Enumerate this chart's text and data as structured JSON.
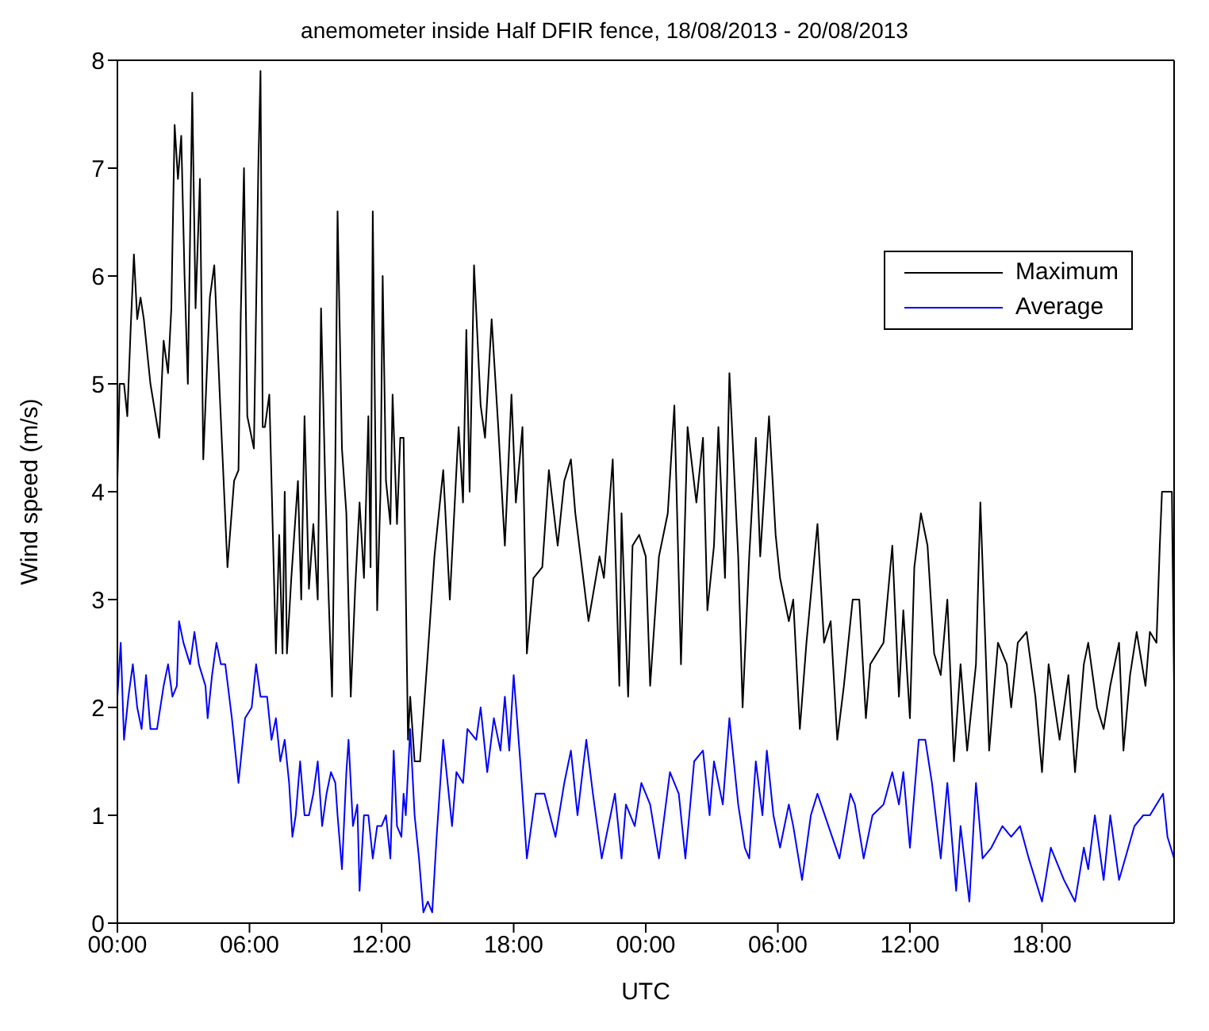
{
  "chart_data": {
    "type": "line",
    "title": "anemometer inside Half DFIR fence, 18/08/2013 - 20/08/2013",
    "xlabel": "UTC",
    "ylabel": "Wind speed (m/s)",
    "xlim": [
      "2013-08-18T00:00",
      "2013-08-20T00:00"
    ],
    "xticks": [
      {
        "value": "2013-08-18T00:00",
        "label": "00:00"
      },
      {
        "value": "2013-08-18T06:00",
        "label": "06:00"
      },
      {
        "value": "2013-08-18T12:00",
        "label": "12:00"
      },
      {
        "value": "2013-08-18T18:00",
        "label": "18:00"
      },
      {
        "value": "2013-08-19T00:00",
        "label": "00:00"
      },
      {
        "value": "2013-08-19T06:00",
        "label": "06:00"
      },
      {
        "value": "2013-08-19T12:00",
        "label": "12:00"
      },
      {
        "value": "2013-08-19T18:00",
        "label": "18:00"
      }
    ],
    "ylim": [
      0,
      8
    ],
    "yticks": [
      0,
      1,
      2,
      3,
      4,
      5,
      6,
      7,
      8
    ],
    "legend": "top right",
    "line_style": "solid",
    "marker": "none",
    "series": [
      {
        "name": "Maximum",
        "color": "#000000",
        "x": [
          "2013-08-18T00:00",
          "2013-08-18T00:06",
          "2013-08-18T00:18",
          "2013-08-18T00:27",
          "2013-08-18T00:36",
          "2013-08-18T00:45",
          "2013-08-18T00:54",
          "2013-08-18T01:03",
          "2013-08-18T01:12",
          "2013-08-18T01:30",
          "2013-08-18T01:54",
          "2013-08-18T02:06",
          "2013-08-18T02:18",
          "2013-08-18T02:27",
          "2013-08-18T02:36",
          "2013-08-18T02:45",
          "2013-08-18T02:54",
          "2013-08-18T03:03",
          "2013-08-18T03:12",
          "2013-08-18T03:24",
          "2013-08-18T03:33",
          "2013-08-18T03:45",
          "2013-08-18T03:54",
          "2013-08-18T04:12",
          "2013-08-18T04:24",
          "2013-08-18T04:39",
          "2013-08-18T05:00",
          "2013-08-18T05:18",
          "2013-08-18T05:30",
          "2013-08-18T05:36",
          "2013-08-18T05:45",
          "2013-08-18T05:54",
          "2013-08-18T06:12",
          "2013-08-18T06:24",
          "2013-08-18T06:30",
          "2013-08-18T06:36",
          "2013-08-18T06:42",
          "2013-08-18T06:54",
          "2013-08-18T07:06",
          "2013-08-18T07:12",
          "2013-08-18T07:21",
          "2013-08-18T07:30",
          "2013-08-18T07:36",
          "2013-08-18T07:42",
          "2013-08-18T07:54",
          "2013-08-18T08:12",
          "2013-08-18T08:21",
          "2013-08-18T08:30",
          "2013-08-18T08:42",
          "2013-08-18T08:54",
          "2013-08-18T09:06",
          "2013-08-18T09:15",
          "2013-08-18T09:27",
          "2013-08-18T09:36",
          "2013-08-18T09:45",
          "2013-08-18T09:54",
          "2013-08-18T10:00",
          "2013-08-18T10:12",
          "2013-08-18T10:24",
          "2013-08-18T10:36",
          "2013-08-18T10:48",
          "2013-08-18T11:00",
          "2013-08-18T11:12",
          "2013-08-18T11:24",
          "2013-08-18T11:30",
          "2013-08-18T11:36",
          "2013-08-18T11:48",
          "2013-08-18T11:57",
          "2013-08-18T12:03",
          "2013-08-18T12:12",
          "2013-08-18T12:24",
          "2013-08-18T12:30",
          "2013-08-18T12:42",
          "2013-08-18T12:51",
          "2013-08-18T13:00",
          "2013-08-18T13:12",
          "2013-08-18T13:18",
          "2013-08-18T13:30",
          "2013-08-18T13:45",
          "2013-08-18T14:06",
          "2013-08-18T14:24",
          "2013-08-18T14:48",
          "2013-08-18T15:06",
          "2013-08-18T15:30",
          "2013-08-18T15:42",
          "2013-08-18T15:51",
          "2013-08-18T16:00",
          "2013-08-18T16:12",
          "2013-08-18T16:30",
          "2013-08-18T16:42",
          "2013-08-18T17:00",
          "2013-08-18T17:18",
          "2013-08-18T17:36",
          "2013-08-18T17:54",
          "2013-08-18T18:06",
          "2013-08-18T18:24",
          "2013-08-18T18:36",
          "2013-08-18T18:54",
          "2013-08-18T19:18",
          "2013-08-18T19:36",
          "2013-08-18T20:00",
          "2013-08-18T20:18",
          "2013-08-18T20:36",
          "2013-08-18T20:48",
          "2013-08-18T21:24",
          "2013-08-18T21:54",
          "2013-08-18T22:06",
          "2013-08-18T22:30",
          "2013-08-18T22:48",
          "2013-08-18T22:54",
          "2013-08-18T23:12",
          "2013-08-18T23:24",
          "2013-08-18T23:42",
          "2013-08-19T00:00",
          "2013-08-19T00:12",
          "2013-08-19T00:36",
          "2013-08-19T01:00",
          "2013-08-19T01:18",
          "2013-08-19T01:36",
          "2013-08-19T01:54",
          "2013-08-19T02:18",
          "2013-08-19T02:36",
          "2013-08-19T02:48",
          "2013-08-19T03:06",
          "2013-08-19T03:18",
          "2013-08-19T03:36",
          "2013-08-19T03:48",
          "2013-08-19T04:12",
          "2013-08-19T04:24",
          "2013-08-19T04:42",
          "2013-08-19T05:00",
          "2013-08-19T05:12",
          "2013-08-19T05:36",
          "2013-08-19T05:54",
          "2013-08-19T06:06",
          "2013-08-19T06:30",
          "2013-08-19T06:42",
          "2013-08-19T07:00",
          "2013-08-19T07:18",
          "2013-08-19T07:48",
          "2013-08-19T08:06",
          "2013-08-19T08:24",
          "2013-08-19T08:42",
          "2013-08-19T09:00",
          "2013-08-19T09:24",
          "2013-08-19T09:42",
          "2013-08-19T10:00",
          "2013-08-19T10:12",
          "2013-08-19T10:48",
          "2013-08-19T11:12",
          "2013-08-19T11:30",
          "2013-08-19T11:42",
          "2013-08-19T12:00",
          "2013-08-19T12:12",
          "2013-08-19T12:30",
          "2013-08-19T12:48",
          "2013-08-19T13:06",
          "2013-08-19T13:24",
          "2013-08-19T13:42",
          "2013-08-19T14:00",
          "2013-08-19T14:18",
          "2013-08-19T14:36",
          "2013-08-19T15:00",
          "2013-08-19T15:12",
          "2013-08-19T15:36",
          "2013-08-19T16:00",
          "2013-08-19T16:24",
          "2013-08-19T16:36",
          "2013-08-19T16:54",
          "2013-08-19T17:18",
          "2013-08-19T17:42",
          "2013-08-19T18:00",
          "2013-08-19T18:18",
          "2013-08-19T18:48",
          "2013-08-19T19:12",
          "2013-08-19T19:30",
          "2013-08-19T19:54",
          "2013-08-19T20:06",
          "2013-08-19T20:30",
          "2013-08-19T20:48",
          "2013-08-19T21:06",
          "2013-08-19T21:30",
          "2013-08-19T21:42",
          "2013-08-19T22:00",
          "2013-08-19T22:18",
          "2013-08-19T22:42",
          "2013-08-19T22:54",
          "2013-08-19T23:12",
          "2013-08-19T23:21",
          "2013-08-19T23:27",
          "2013-08-19T23:54",
          "2013-08-20T00:00"
        ],
        "values": [
          4.1,
          5,
          5,
          4.7,
          5.5,
          6.2,
          5.6,
          5.8,
          5.6,
          5,
          4.5,
          5.4,
          5.1,
          5.7,
          7.4,
          6.9,
          7.3,
          6,
          5,
          7.7,
          5.7,
          6.9,
          4.3,
          5.8,
          6.1,
          4.9,
          3.3,
          4.1,
          4.2,
          5.6,
          7,
          4.7,
          4.4,
          7,
          7.9,
          4.6,
          4.6,
          4.9,
          3.3,
          2.5,
          3.6,
          2.5,
          4,
          2.5,
          3.2,
          4.1,
          3,
          4.7,
          3.1,
          3.7,
          3,
          5.7,
          4,
          3,
          2.1,
          4.3,
          6.6,
          4.4,
          3.8,
          2.1,
          3.1,
          3.9,
          3.2,
          4.7,
          3.3,
          6.6,
          2.9,
          4,
          6,
          4.1,
          3.7,
          4.9,
          3.7,
          4.5,
          4.5,
          1.7,
          2.1,
          1.5,
          1.5,
          2.5,
          3.4,
          4.2,
          3,
          4.6,
          3.9,
          5.5,
          4,
          6.1,
          4.8,
          4.5,
          5.6,
          4.6,
          3.5,
          4.9,
          3.9,
          4.6,
          2.5,
          3.2,
          3.3,
          4.2,
          3.5,
          4.1,
          4.3,
          3.8,
          2.8,
          3.4,
          3.2,
          4.3,
          2.2,
          3.8,
          2.1,
          3.5,
          3.6,
          3.4,
          2.2,
          3.4,
          3.8,
          4.8,
          2.4,
          4.6,
          3.9,
          4.5,
          2.9,
          3.5,
          4.6,
          3.2,
          5.1,
          3.4,
          2,
          3.4,
          4.5,
          3.4,
          4.7,
          3.6,
          3.2,
          2.8,
          3,
          1.8,
          2.6,
          3.7,
          2.6,
          2.8,
          1.7,
          2.2,
          3,
          3,
          1.9,
          2.4,
          2.6,
          3.5,
          2.1,
          2.9,
          1.9,
          3.3,
          3.8,
          3.5,
          2.5,
          2.3,
          3,
          1.5,
          2.4,
          1.6,
          2.4,
          3.9,
          1.6,
          2.6,
          2.4,
          2,
          2.6,
          2.7,
          2.1,
          1.4,
          2.4,
          1.7,
          2.3,
          1.4,
          2.4,
          2.6,
          2,
          1.8,
          2.2,
          2.6,
          1.6,
          2.3,
          2.7,
          2.2,
          2.7,
          2.6,
          3.5,
          4,
          4,
          2.2
        ]
      },
      {
        "name": "Average",
        "color": "#0000ff",
        "x": [
          "2013-08-18T00:00",
          "2013-08-18T00:09",
          "2013-08-18T00:18",
          "2013-08-18T00:30",
          "2013-08-18T00:42",
          "2013-08-18T00:54",
          "2013-08-18T01:06",
          "2013-08-18T01:18",
          "2013-08-18T01:30",
          "2013-08-18T01:48",
          "2013-08-18T02:06",
          "2013-08-18T02:18",
          "2013-08-18T02:30",
          "2013-08-18T02:42",
          "2013-08-18T02:48",
          "2013-08-18T03:00",
          "2013-08-18T03:18",
          "2013-08-18T03:30",
          "2013-08-18T03:42",
          "2013-08-18T04:00",
          "2013-08-18T04:06",
          "2013-08-18T04:18",
          "2013-08-18T04:30",
          "2013-08-18T04:42",
          "2013-08-18T04:54",
          "2013-08-18T05:12",
          "2013-08-18T05:30",
          "2013-08-18T05:48",
          "2013-08-18T06:06",
          "2013-08-18T06:18",
          "2013-08-18T06:30",
          "2013-08-18T06:48",
          "2013-08-18T07:00",
          "2013-08-18T07:12",
          "2013-08-18T07:24",
          "2013-08-18T07:36",
          "2013-08-18T07:48",
          "2013-08-18T07:57",
          "2013-08-18T08:06",
          "2013-08-18T08:18",
          "2013-08-18T08:30",
          "2013-08-18T08:42",
          "2013-08-18T08:54",
          "2013-08-18T09:06",
          "2013-08-18T09:18",
          "2013-08-18T09:30",
          "2013-08-18T09:42",
          "2013-08-18T09:54",
          "2013-08-18T10:00",
          "2013-08-18T10:12",
          "2013-08-18T10:24",
          "2013-08-18T10:30",
          "2013-08-18T10:42",
          "2013-08-18T10:54",
          "2013-08-18T11:00",
          "2013-08-18T11:12",
          "2013-08-18T11:24",
          "2013-08-18T11:36",
          "2013-08-18T11:48",
          "2013-08-18T12:00",
          "2013-08-18T12:12",
          "2013-08-18T12:24",
          "2013-08-18T12:33",
          "2013-08-18T12:42",
          "2013-08-18T12:54",
          "2013-08-18T13:00",
          "2013-08-18T13:06",
          "2013-08-18T13:18",
          "2013-08-18T13:30",
          "2013-08-18T13:42",
          "2013-08-18T13:54",
          "2013-08-18T14:06",
          "2013-08-18T14:18",
          "2013-08-18T14:30",
          "2013-08-18T14:48",
          "2013-08-18T15:12",
          "2013-08-18T15:24",
          "2013-08-18T15:42",
          "2013-08-18T15:54",
          "2013-08-18T16:18",
          "2013-08-18T16:30",
          "2013-08-18T16:48",
          "2013-08-18T17:06",
          "2013-08-18T17:24",
          "2013-08-18T17:36",
          "2013-08-18T17:48",
          "2013-08-18T18:00",
          "2013-08-18T18:18",
          "2013-08-18T18:36",
          "2013-08-18T19:00",
          "2013-08-18T19:24",
          "2013-08-18T19:54",
          "2013-08-18T20:18",
          "2013-08-18T20:36",
          "2013-08-18T20:54",
          "2013-08-18T21:18",
          "2013-08-18T21:36",
          "2013-08-18T22:00",
          "2013-08-18T22:36",
          "2013-08-18T22:54",
          "2013-08-18T23:06",
          "2013-08-18T23:30",
          "2013-08-18T23:48",
          "2013-08-19T00:12",
          "2013-08-19T00:36",
          "2013-08-19T01:06",
          "2013-08-19T01:30",
          "2013-08-19T01:48",
          "2013-08-19T02:12",
          "2013-08-19T02:36",
          "2013-08-19T02:54",
          "2013-08-19T03:06",
          "2013-08-19T03:30",
          "2013-08-19T03:48",
          "2013-08-19T04:12",
          "2013-08-19T04:30",
          "2013-08-19T04:42",
          "2013-08-19T05:00",
          "2013-08-19T05:18",
          "2013-08-19T05:30",
          "2013-08-19T05:48",
          "2013-08-19T06:06",
          "2013-08-19T06:30",
          "2013-08-19T06:42",
          "2013-08-19T07:06",
          "2013-08-19T07:30",
          "2013-08-19T07:48",
          "2013-08-19T08:18",
          "2013-08-19T08:48",
          "2013-08-19T09:18",
          "2013-08-19T09:30",
          "2013-08-19T09:54",
          "2013-08-19T10:18",
          "2013-08-19T10:48",
          "2013-08-19T11:12",
          "2013-08-19T11:30",
          "2013-08-19T11:42",
          "2013-08-19T12:00",
          "2013-08-19T12:24",
          "2013-08-19T12:42",
          "2013-08-19T13:00",
          "2013-08-19T13:24",
          "2013-08-19T13:42",
          "2013-08-19T14:06",
          "2013-08-19T14:18",
          "2013-08-19T14:42",
          "2013-08-19T15:00",
          "2013-08-19T15:18",
          "2013-08-19T15:42",
          "2013-08-19T16:12",
          "2013-08-19T16:36",
          "2013-08-19T17:00",
          "2013-08-19T17:24",
          "2013-08-19T18:00",
          "2013-08-19T18:24",
          "2013-08-19T19:00",
          "2013-08-19T19:30",
          "2013-08-19T19:54",
          "2013-08-19T20:06",
          "2013-08-19T20:24",
          "2013-08-19T20:48",
          "2013-08-19T21:06",
          "2013-08-19T21:30",
          "2013-08-19T22:12",
          "2013-08-19T22:36",
          "2013-08-19T22:54",
          "2013-08-19T23:30",
          "2013-08-19T23:42",
          "2013-08-20T00:00"
        ],
        "values": [
          2.1,
          2.6,
          1.7,
          2.1,
          2.4,
          2,
          1.8,
          2.3,
          1.8,
          1.8,
          2.2,
          2.4,
          2.1,
          2.2,
          2.8,
          2.6,
          2.4,
          2.7,
          2.4,
          2.2,
          1.9,
          2.3,
          2.6,
          2.4,
          2.4,
          1.9,
          1.3,
          1.9,
          2,
          2.4,
          2.1,
          2.1,
          1.7,
          1.9,
          1.5,
          1.7,
          1.3,
          0.8,
          1,
          1.5,
          1,
          1,
          1.2,
          1.5,
          0.9,
          1.2,
          1.4,
          1.3,
          1,
          0.5,
          1.4,
          1.7,
          0.9,
          1.1,
          0.3,
          1,
          1,
          0.6,
          0.9,
          0.9,
          1,
          0.6,
          1.6,
          0.9,
          0.8,
          1.2,
          1,
          1.8,
          1,
          0.6,
          0.1,
          0.2,
          0.1,
          0.8,
          1.7,
          0.9,
          1.4,
          1.3,
          1.8,
          1.7,
          2,
          1.4,
          1.9,
          1.6,
          2.1,
          1.6,
          2.3,
          1.5,
          0.6,
          1.2,
          1.2,
          0.8,
          1.3,
          1.6,
          1,
          1.7,
          1.2,
          0.6,
          1.2,
          0.6,
          1.1,
          0.9,
          1.3,
          1.1,
          0.6,
          1.4,
          1.2,
          0.6,
          1.5,
          1.6,
          1,
          1.5,
          1.1,
          1.9,
          1.1,
          0.7,
          0.6,
          1.5,
          1,
          1.6,
          1,
          0.7,
          1.1,
          0.9,
          0.4,
          1,
          1.2,
          0.9,
          0.6,
          1.2,
          1.1,
          0.6,
          1,
          1.1,
          1.4,
          1.1,
          1.4,
          0.7,
          1.7,
          1.7,
          1.3,
          0.6,
          1.3,
          0.3,
          0.9,
          0.2,
          1.3,
          0.6,
          0.7,
          0.9,
          0.8,
          0.9,
          0.6,
          0.2,
          0.7,
          0.4,
          0.2,
          0.7,
          0.5,
          1,
          0.4,
          1,
          0.4,
          0.9,
          1,
          1,
          1.2,
          0.8,
          0.6
        ]
      }
    ]
  }
}
